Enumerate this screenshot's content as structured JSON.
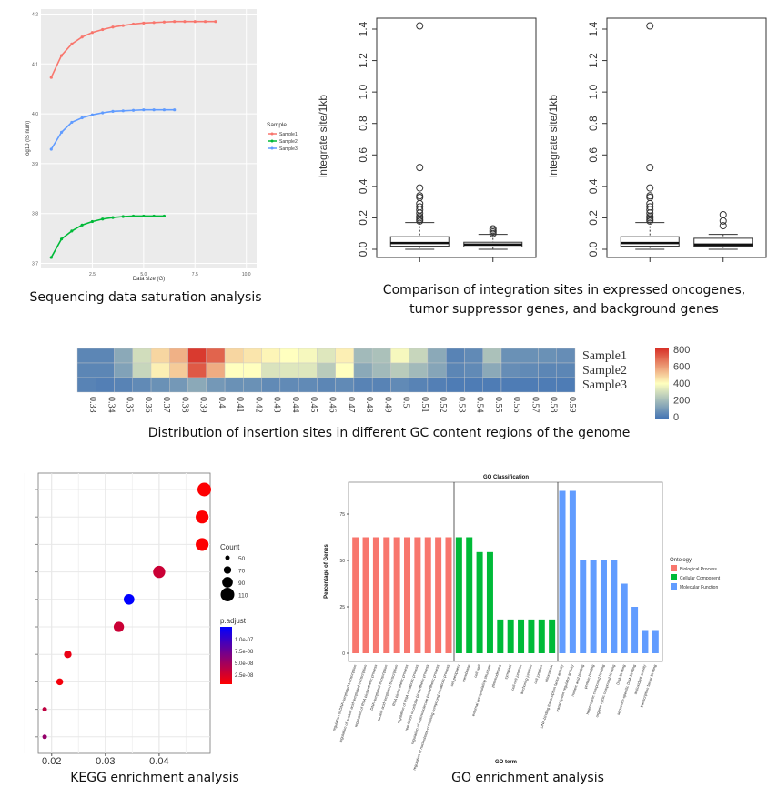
{
  "captions": {
    "saturation": "Sequencing data saturation analysis",
    "boxplot_line1": "Comparison of integration sites in expressed oncogenes,",
    "boxplot_line2": "tumor suppressor genes, and background genes",
    "heatmap": "Distribution of insertion sites in different GC content regions of the genome",
    "kegg": "KEGG enrichment analysis",
    "go": "GO enrichment analysis"
  },
  "chart_data": [
    {
      "type": "line",
      "xlabel": "Data size (G)",
      "ylabel": "log10 (IS num)",
      "xlim": [
        0,
        10.5
      ],
      "ylim": [
        3.69,
        4.21
      ],
      "xticks": [
        "2.5",
        "5.0",
        "7.5",
        "10.0"
      ],
      "yticks": [
        "3.7",
        "3.8",
        "3.9",
        "4.0",
        "4.1",
        "4.2"
      ],
      "grid": true,
      "legend_title": "Sample",
      "legend_position": "right",
      "series": [
        {
          "name": "Sample1",
          "color": "#F8766D",
          "x": [
            0.5,
            1,
            1.5,
            2,
            2.5,
            3,
            3.5,
            4,
            4.5,
            5,
            5.5,
            6,
            6.5,
            7,
            7.5,
            8,
            8.5
          ],
          "y": [
            4.073,
            4.117,
            4.14,
            4.154,
            4.163,
            4.169,
            4.174,
            4.177,
            4.18,
            4.182,
            4.183,
            4.184,
            4.185,
            4.185,
            4.185,
            4.185,
            4.185
          ]
        },
        {
          "name": "Sample2",
          "color": "#00BA38",
          "x": [
            0.5,
            1,
            1.5,
            2,
            2.5,
            3,
            3.5,
            4,
            4.5,
            5,
            5.5,
            6
          ],
          "y": [
            3.712,
            3.749,
            3.765,
            3.777,
            3.784,
            3.789,
            3.792,
            3.794,
            3.795,
            3.795,
            3.795,
            3.795
          ]
        },
        {
          "name": "Sample3",
          "color": "#619CFF",
          "x": [
            0.5,
            1,
            1.5,
            2,
            2.5,
            3,
            3.5,
            4,
            4.5,
            5,
            5.5,
            6,
            6.5
          ],
          "y": [
            3.929,
            3.963,
            3.983,
            3.992,
            3.998,
            4.002,
            4.005,
            4.006,
            4.007,
            4.008,
            4.008,
            4.008,
            4.008
          ]
        }
      ]
    },
    {
      "type": "boxplot",
      "panels": [
        {
          "ylabel": "Integrate site/1kb",
          "ylim": [
            0,
            1.4
          ],
          "yticks": [
            "0.0",
            "0.2",
            "0.4",
            "0.6",
            "0.8",
            "1.0",
            "1.2",
            "1.4"
          ],
          "boxes": [
            {
              "min": 0.0,
              "q1": 0.02,
              "median": 0.04,
              "q3": 0.08,
              "max": 0.17,
              "outliers": [
                1.42,
                0.52,
                0.39,
                0.34,
                0.33,
                0.29,
                0.27,
                0.25,
                0.23,
                0.21,
                0.2,
                0.19,
                0.18
              ]
            },
            {
              "min": 0.0,
              "q1": 0.015,
              "median": 0.03,
              "q3": 0.045,
              "max": 0.095,
              "outliers": [
                0.13,
                0.12,
                0.11,
                0.1
              ]
            }
          ]
        },
        {
          "ylabel": "Integrate site/1kb",
          "ylim": [
            0,
            1.4
          ],
          "yticks": [
            "0.0",
            "0.2",
            "0.4",
            "0.6",
            "0.8",
            "1.0",
            "1.2",
            "1.4"
          ],
          "boxes": [
            {
              "min": 0.0,
              "q1": 0.02,
              "median": 0.04,
              "q3": 0.08,
              "max": 0.17,
              "outliers": [
                1.42,
                0.52,
                0.39,
                0.34,
                0.33,
                0.29,
                0.27,
                0.25,
                0.23,
                0.21,
                0.2,
                0.19,
                0.18
              ]
            },
            {
              "min": 0.0,
              "q1": 0.02,
              "median": 0.03,
              "q3": 0.07,
              "max": 0.095,
              "outliers": [
                0.22,
                0.18,
                0.15
              ]
            }
          ]
        }
      ]
    },
    {
      "type": "heatmap",
      "rows": [
        "Sample1",
        "Sample2",
        "Sample3"
      ],
      "columns": [
        "0.33",
        "0.34",
        "0.35",
        "0.36",
        "0.37",
        "0.38",
        "0.39",
        "0.4",
        "0.41",
        "0.42",
        "0.43",
        "0.44",
        "0.45",
        "0.46",
        "0.47",
        "0.48",
        "0.49",
        "0.5",
        "0.51",
        "0.52",
        "0.53",
        "0.54",
        "0.55",
        "0.56",
        "0.57",
        "0.58",
        "0.59"
      ],
      "values": [
        [
          50,
          50,
          150,
          300,
          480,
          550,
          780,
          700,
          480,
          450,
          420,
          400,
          380,
          330,
          430,
          200,
          220,
          380,
          280,
          150,
          40,
          60,
          220,
          80,
          80,
          80,
          70
        ],
        [
          50,
          50,
          130,
          280,
          430,
          500,
          720,
          560,
          400,
          400,
          320,
          330,
          330,
          250,
          400,
          150,
          200,
          250,
          200,
          140,
          50,
          60,
          150,
          70,
          60,
          50,
          50
        ],
        [
          40,
          30,
          40,
          60,
          80,
          100,
          150,
          100,
          80,
          80,
          60,
          60,
          60,
          50,
          60,
          40,
          40,
          60,
          40,
          30,
          20,
          20,
          20,
          20,
          20,
          20,
          20
        ]
      ],
      "color_range": [
        0,
        800
      ],
      "colorbar_ticks": [
        "800",
        "600",
        "400",
        "200",
        "0"
      ],
      "colors": [
        "#4575B4",
        "#FFFFBF",
        "#D73027"
      ]
    },
    {
      "type": "scatter",
      "xlim": [
        0.0175,
        0.0495
      ],
      "xticks": [
        "0.02",
        "0.03",
        "0.04"
      ],
      "grid": true,
      "points": [
        {
          "x": 0.0484,
          "count": 110,
          "p_adjust": 1e-09
        },
        {
          "x": 0.048,
          "count": 105,
          "p_adjust": 1e-09
        },
        {
          "x": 0.048,
          "count": 105,
          "p_adjust": 1e-09
        },
        {
          "x": 0.04,
          "count": 100,
          "p_adjust": 2.5e-08
        },
        {
          "x": 0.0344,
          "count": 90,
          "p_adjust": 1.2e-07
        },
        {
          "x": 0.0325,
          "count": 88,
          "p_adjust": 2.5e-08
        },
        {
          "x": 0.023,
          "count": 70,
          "p_adjust": 1e-08
        },
        {
          "x": 0.0215,
          "count": 65,
          "p_adjust": 5e-09
        },
        {
          "x": 0.0187,
          "count": 50,
          "p_adjust": 3e-08
        },
        {
          "x": 0.0187,
          "count": 50,
          "p_adjust": 5e-08
        }
      ],
      "size_legend": {
        "title": "Count",
        "values": [
          "50",
          "70",
          "90",
          "110"
        ]
      },
      "color_legend": {
        "title": "p.adjust",
        "ticks": [
          "1.0e-07",
          "7.5e-08",
          "5.0e-08",
          "2.5e-08"
        ],
        "low_color": "#FF0000",
        "high_color": "#0000FF"
      }
    },
    {
      "type": "bar",
      "title": "GO Classification",
      "xlabel": "GO term",
      "ylabel": "Percentage of Genes",
      "ylim": [
        0,
        90
      ],
      "yticks": [
        "0",
        "25",
        "50",
        "75"
      ],
      "legend_title": "Ontology",
      "legend_position": "right",
      "series": [
        {
          "name": "Biological Process",
          "color": "#F8766D",
          "categories": [
            "regulation of DNA-templated transcription",
            "regulation of nucleic acid-templated transcription",
            "regulation of RNA biosynthetic process",
            "DNA-templated transcription",
            "nucleic acid-templated transcription",
            "RNA biosynthetic process",
            "regulation of RNA metabolic process",
            "regulation of cellular biosynthetic process",
            "regulation of macromolecule biosynthetic process",
            "regulation of nucleobase-containing compound metabolic process"
          ],
          "values": [
            62.5,
            62.5,
            62.5,
            62.5,
            62.5,
            62.5,
            62.5,
            62.5,
            62.5,
            62.5
          ]
        },
        {
          "name": "Cellular Component",
          "color": "#00BA38",
          "categories": [
            "cell periphery",
            "membrane",
            "cell wall",
            "external encapsulating structure",
            "plasmodesma",
            "symplast",
            "cell-cell junction",
            "anchoring junction",
            "cell junction",
            "chloroplast"
          ],
          "values": [
            62.5,
            62.5,
            54.5,
            54.5,
            18.2,
            18.2,
            18.2,
            18.2,
            18.2,
            18.2
          ]
        },
        {
          "name": "Molecular Function",
          "color": "#619CFF",
          "categories": [
            "DNA-binding transcription factor activity",
            "transcription regulator activity",
            "nucleic acid binding",
            "protein binding",
            "heterocyclic compound binding",
            "organic cyclic compound binding",
            "DNA binding",
            "sequence-specific DNA binding",
            "antioxidant activity",
            "transcription factor binding"
          ],
          "values": [
            87.5,
            87.5,
            50,
            50,
            50,
            50,
            37.5,
            25,
            12.5,
            12.5
          ]
        }
      ]
    }
  ]
}
